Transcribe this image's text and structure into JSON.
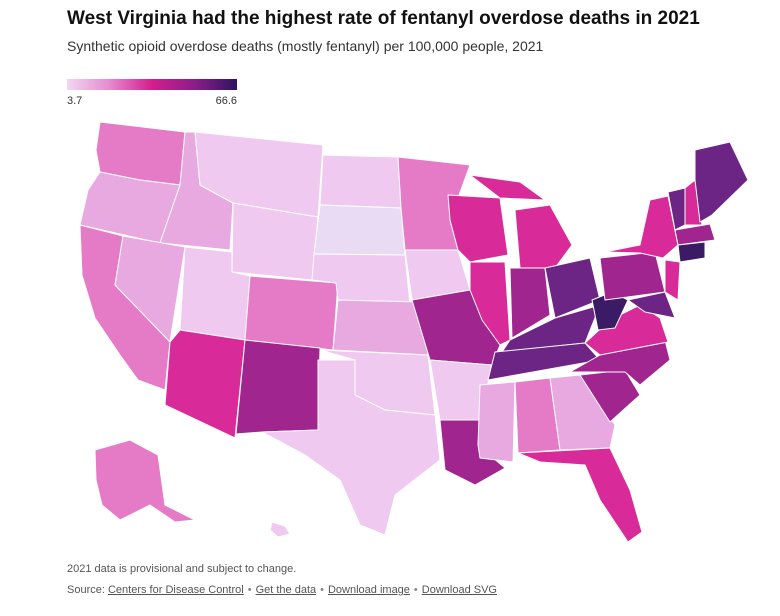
{
  "title": "West Virginia had the highest rate of fentanyl overdose deaths in 2021",
  "subtitle": "Synthetic opioid overdose deaths (mostly fentanyl) per 100,000 people, 2021",
  "legend": {
    "min_label": "3.7",
    "max_label": "66.6",
    "colors": [
      "#f1d7f2",
      "#e58ad0",
      "#d41e8e",
      "#8a1e8a",
      "#2e1460"
    ]
  },
  "note": "2021 data is provisional and subject to change.",
  "source": {
    "prefix": "Source:",
    "links": [
      "Centers for Disease Control",
      "Get the data",
      "Download image",
      "Download SVG"
    ]
  },
  "colors": {
    "vlight": "#efc9ef",
    "light": "#e8a8e0",
    "pink": "#e57ac6",
    "magenta": "#d92a9a",
    "purple": "#a0258f",
    "deep": "#6d2585",
    "darkest": "#3b1a66",
    "faint": "#e8dbf3"
  }
}
